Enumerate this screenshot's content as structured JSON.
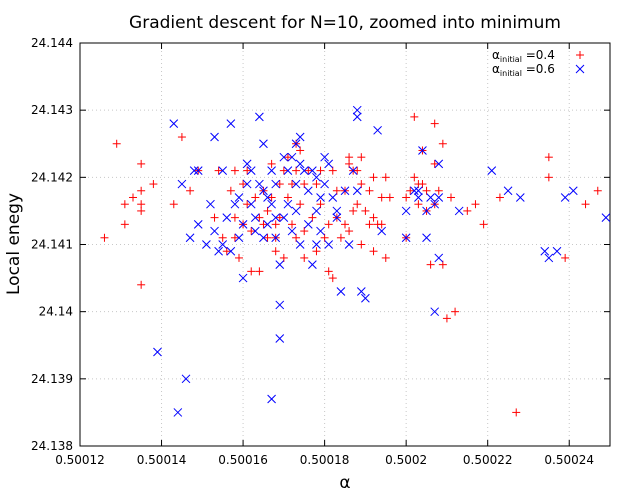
{
  "chart_data": {
    "type": "scatter",
    "title": "Gradient descent for N=10, zoomed into minimum",
    "xlabel": "α",
    "ylabel": "Local enegy",
    "xlim": [
      0.50012,
      0.50025
    ],
    "ylim": [
      24.138,
      24.144
    ],
    "xticks": [
      0.50012,
      0.50014,
      0.50016,
      0.50018,
      0.5002,
      0.50022,
      0.50024
    ],
    "xtick_labels": [
      "0.50012",
      "0.50014",
      "0.50016",
      "0.50018",
      "0.5002",
      "0.50022",
      "0.50024"
    ],
    "yticks": [
      24.138,
      24.139,
      24.14,
      24.141,
      24.142,
      24.143,
      24.144
    ],
    "ytick_labels": [
      "24.138",
      "24.139",
      "24.14",
      "24.141",
      "24.142",
      "24.143",
      "24.144"
    ],
    "grid": true,
    "legend_position": "top-right",
    "series": [
      {
        "name": "α_initial = 0.4",
        "legend": {
          "prefix": "α",
          "sub": "initial",
          "suffix": " =0.4"
        },
        "marker": "plus",
        "color": "#ff0000",
        "points": [
          [
            0.500126,
            24.1411
          ],
          [
            0.500129,
            24.1425
          ],
          [
            0.500131,
            24.1416
          ],
          [
            0.500131,
            24.1413
          ],
          [
            0.500133,
            24.1417
          ],
          [
            0.500135,
            24.1422
          ],
          [
            0.500135,
            24.1418
          ],
          [
            0.500135,
            24.1416
          ],
          [
            0.500135,
            24.1415
          ],
          [
            0.500135,
            24.1404
          ],
          [
            0.500138,
            24.1419
          ],
          [
            0.500143,
            24.1416
          ],
          [
            0.500145,
            24.1426
          ],
          [
            0.500147,
            24.1418
          ],
          [
            0.500149,
            24.1421
          ],
          [
            0.500153,
            24.1414
          ],
          [
            0.500154,
            24.1421
          ],
          [
            0.500155,
            24.1411
          ],
          [
            0.500156,
            24.1409
          ],
          [
            0.500157,
            24.1418
          ],
          [
            0.500158,
            24.1421
          ],
          [
            0.500158,
            24.1414
          ],
          [
            0.500158,
            24.1411
          ],
          [
            0.500159,
            24.1408
          ],
          [
            0.50016,
            24.1419
          ],
          [
            0.50016,
            24.1413
          ],
          [
            0.500161,
            24.1421
          ],
          [
            0.500161,
            24.1416
          ],
          [
            0.500162,
            24.1406
          ],
          [
            0.500162,
            24.1412
          ],
          [
            0.500163,
            24.1417
          ],
          [
            0.500164,
            24.1406
          ],
          [
            0.500164,
            24.1414
          ],
          [
            0.500165,
            24.1418
          ],
          [
            0.500165,
            24.1413
          ],
          [
            0.500166,
            24.1415
          ],
          [
            0.500166,
            24.1411
          ],
          [
            0.500167,
            24.1422
          ],
          [
            0.500167,
            24.1417
          ],
          [
            0.500168,
            24.1413
          ],
          [
            0.500168,
            24.1409
          ],
          [
            0.500168,
            24.1411
          ],
          [
            0.500169,
            24.1419
          ],
          [
            0.500169,
            24.1414
          ],
          [
            0.50017,
            24.1421
          ],
          [
            0.50017,
            24.1408
          ],
          [
            0.500171,
            24.1423
          ],
          [
            0.500171,
            24.1417
          ],
          [
            0.500172,
            24.1413
          ],
          [
            0.500172,
            24.1419
          ],
          [
            0.500173,
            24.1425
          ],
          [
            0.500173,
            24.1421
          ],
          [
            0.500173,
            24.1411
          ],
          [
            0.500174,
            24.1424
          ],
          [
            0.500174,
            24.1416
          ],
          [
            0.500175,
            24.1419
          ],
          [
            0.500175,
            24.1412
          ],
          [
            0.500175,
            24.1408
          ],
          [
            0.500176,
            24.1421
          ],
          [
            0.500177,
            24.1414
          ],
          [
            0.500178,
            24.1419
          ],
          [
            0.500178,
            24.1409
          ],
          [
            0.500179,
            24.1421
          ],
          [
            0.500179,
            24.1416
          ],
          [
            0.50018,
            24.1411
          ],
          [
            0.500181,
            24.1406
          ],
          [
            0.500181,
            24.1413
          ],
          [
            0.500182,
            24.1421
          ],
          [
            0.500182,
            24.1405
          ],
          [
            0.500183,
            24.1414
          ],
          [
            0.500183,
            24.1418
          ],
          [
            0.500184,
            24.1411
          ],
          [
            0.500185,
            24.1418
          ],
          [
            0.500185,
            24.1413
          ],
          [
            0.500186,
            24.1423
          ],
          [
            0.500186,
            24.1422
          ],
          [
            0.500186,
            24.1412
          ],
          [
            0.500187,
            24.1421
          ],
          [
            0.500187,
            24.1415
          ],
          [
            0.500188,
            24.1421
          ],
          [
            0.500188,
            24.1416
          ],
          [
            0.500189,
            24.1423
          ],
          [
            0.500189,
            24.1419
          ],
          [
            0.500189,
            24.141
          ],
          [
            0.50019,
            24.1415
          ],
          [
            0.500191,
            24.1418
          ],
          [
            0.500191,
            24.1413
          ],
          [
            0.500192,
            24.142
          ],
          [
            0.500192,
            24.1414
          ],
          [
            0.500192,
            24.1409
          ],
          [
            0.500193,
            24.1413
          ],
          [
            0.500194,
            24.1417
          ],
          [
            0.500194,
            24.1413
          ],
          [
            0.500195,
            24.142
          ],
          [
            0.500195,
            24.1408
          ],
          [
            0.500196,
            24.1417
          ],
          [
            0.5002,
            24.1411
          ],
          [
            0.5002,
            24.1417
          ],
          [
            0.500201,
            24.1418
          ],
          [
            0.500202,
            24.1429
          ],
          [
            0.500202,
            24.142
          ],
          [
            0.500203,
            24.1419
          ],
          [
            0.500203,
            24.1416
          ],
          [
            0.500204,
            24.1424
          ],
          [
            0.500204,
            24.1419
          ],
          [
            0.500205,
            24.1418
          ],
          [
            0.500205,
            24.1415
          ],
          [
            0.500206,
            24.1407
          ],
          [
            0.500207,
            24.1422
          ],
          [
            0.500207,
            24.1416
          ],
          [
            0.500207,
            24.1428
          ],
          [
            0.500208,
            24.1418
          ],
          [
            0.500209,
            24.1425
          ],
          [
            0.500209,
            24.1407
          ],
          [
            0.50021,
            24.1399
          ],
          [
            0.500211,
            24.1417
          ],
          [
            0.500212,
            24.14
          ],
          [
            0.500215,
            24.1415
          ],
          [
            0.500217,
            24.1416
          ],
          [
            0.500219,
            24.1413
          ],
          [
            0.500223,
            24.1417
          ],
          [
            0.500227,
            24.1385
          ],
          [
            0.500235,
            24.1423
          ],
          [
            0.500235,
            24.142
          ],
          [
            0.500239,
            24.1408
          ],
          [
            0.500244,
            24.1416
          ],
          [
            0.500247,
            24.1418
          ]
        ]
      },
      {
        "name": "α_initial = 0.6",
        "legend": {
          "prefix": "α",
          "sub": "initial",
          "suffix": " =0.6"
        },
        "marker": "cross",
        "color": "#0000ff",
        "points": [
          [
            0.500139,
            24.1394
          ],
          [
            0.500143,
            24.1428
          ],
          [
            0.500144,
            24.1385
          ],
          [
            0.500145,
            24.1419
          ],
          [
            0.500146,
            24.139
          ],
          [
            0.500147,
            24.1411
          ],
          [
            0.500148,
            24.1421
          ],
          [
            0.500149,
            24.1421
          ],
          [
            0.500149,
            24.1413
          ],
          [
            0.500151,
            24.141
          ],
          [
            0.500152,
            24.1416
          ],
          [
            0.500153,
            24.1426
          ],
          [
            0.500153,
            24.1412
          ],
          [
            0.500154,
            24.1409
          ],
          [
            0.500155,
            24.1421
          ],
          [
            0.500155,
            24.141
          ],
          [
            0.500156,
            24.1414
          ],
          [
            0.500157,
            24.1428
          ],
          [
            0.500157,
            24.1409
          ],
          [
            0.500158,
            24.1416
          ],
          [
            0.500159,
            24.1417
          ],
          [
            0.500159,
            24.1411
          ],
          [
            0.50016,
            24.1405
          ],
          [
            0.50016,
            24.1413
          ],
          [
            0.500161,
            24.1422
          ],
          [
            0.500161,
            24.1419
          ],
          [
            0.500162,
            24.1416
          ],
          [
            0.500162,
            24.1421
          ],
          [
            0.500163,
            24.1414
          ],
          [
            0.500163,
            24.1412
          ],
          [
            0.500164,
            24.1429
          ],
          [
            0.500164,
            24.1419
          ],
          [
            0.500165,
            24.1425
          ],
          [
            0.500165,
            24.1411
          ],
          [
            0.500165,
            24.1418
          ],
          [
            0.500166,
            24.1417
          ],
          [
            0.500166,
            24.1413
          ],
          [
            0.500167,
            24.1387
          ],
          [
            0.500167,
            24.1421
          ],
          [
            0.500167,
            24.1416
          ],
          [
            0.500168,
            24.1414
          ],
          [
            0.500168,
            24.1411
          ],
          [
            0.500168,
            24.1419
          ],
          [
            0.500169,
            24.1401
          ],
          [
            0.500169,
            24.1396
          ],
          [
            0.500169,
            24.1407
          ],
          [
            0.50017,
            24.1423
          ],
          [
            0.50017,
            24.1414
          ],
          [
            0.500171,
            24.1421
          ],
          [
            0.500171,
            24.1416
          ],
          [
            0.500172,
            24.1412
          ],
          [
            0.500172,
            24.1423
          ],
          [
            0.500173,
            24.1425
          ],
          [
            0.500173,
            24.1415
          ],
          [
            0.500173,
            24.1419
          ],
          [
            0.500174,
            24.1426
          ],
          [
            0.500174,
            24.1422
          ],
          [
            0.500174,
            24.141
          ],
          [
            0.500175,
            24.1421
          ],
          [
            0.500176,
            24.1418
          ],
          [
            0.500176,
            24.1413
          ],
          [
            0.500177,
            24.1421
          ],
          [
            0.500177,
            24.1407
          ],
          [
            0.500178,
            24.142
          ],
          [
            0.500178,
            24.141
          ],
          [
            0.500178,
            24.1415
          ],
          [
            0.500179,
            24.1417
          ],
          [
            0.500179,
            24.1412
          ],
          [
            0.50018,
            24.1423
          ],
          [
            0.50018,
            24.1419
          ],
          [
            0.500181,
            24.1422
          ],
          [
            0.500181,
            24.141
          ],
          [
            0.500182,
            24.1417
          ],
          [
            0.500183,
            24.1415
          ],
          [
            0.500183,
            24.1414
          ],
          [
            0.500184,
            24.1403
          ],
          [
            0.500185,
            24.1418
          ],
          [
            0.500186,
            24.141
          ],
          [
            0.500187,
            24.1421
          ],
          [
            0.500188,
            24.143
          ],
          [
            0.500188,
            24.1429
          ],
          [
            0.500188,
            24.1418
          ],
          [
            0.500189,
            24.1403
          ],
          [
            0.50019,
            24.1402
          ],
          [
            0.500193,
            24.1427
          ],
          [
            0.500194,
            24.1412
          ],
          [
            0.5002,
            24.1415
          ],
          [
            0.5002,
            24.1411
          ],
          [
            0.500202,
            24.1418
          ],
          [
            0.500203,
            24.1417
          ],
          [
            0.500203,
            24.1418
          ],
          [
            0.500204,
            24.1424
          ],
          [
            0.500205,
            24.1411
          ],
          [
            0.500205,
            24.1415
          ],
          [
            0.500206,
            24.1417
          ],
          [
            0.500207,
            24.1416
          ],
          [
            0.500207,
            24.14
          ],
          [
            0.500208,
            24.1422
          ],
          [
            0.500208,
            24.1408
          ],
          [
            0.500208,
            24.1417
          ],
          [
            0.500213,
            24.1415
          ],
          [
            0.500221,
            24.1421
          ],
          [
            0.500225,
            24.1418
          ],
          [
            0.500228,
            24.1417
          ],
          [
            0.500234,
            24.1409
          ],
          [
            0.500235,
            24.1408
          ],
          [
            0.500237,
            24.1409
          ],
          [
            0.500239,
            24.1417
          ],
          [
            0.500241,
            24.1418
          ],
          [
            0.500249,
            24.1414
          ]
        ]
      }
    ]
  }
}
